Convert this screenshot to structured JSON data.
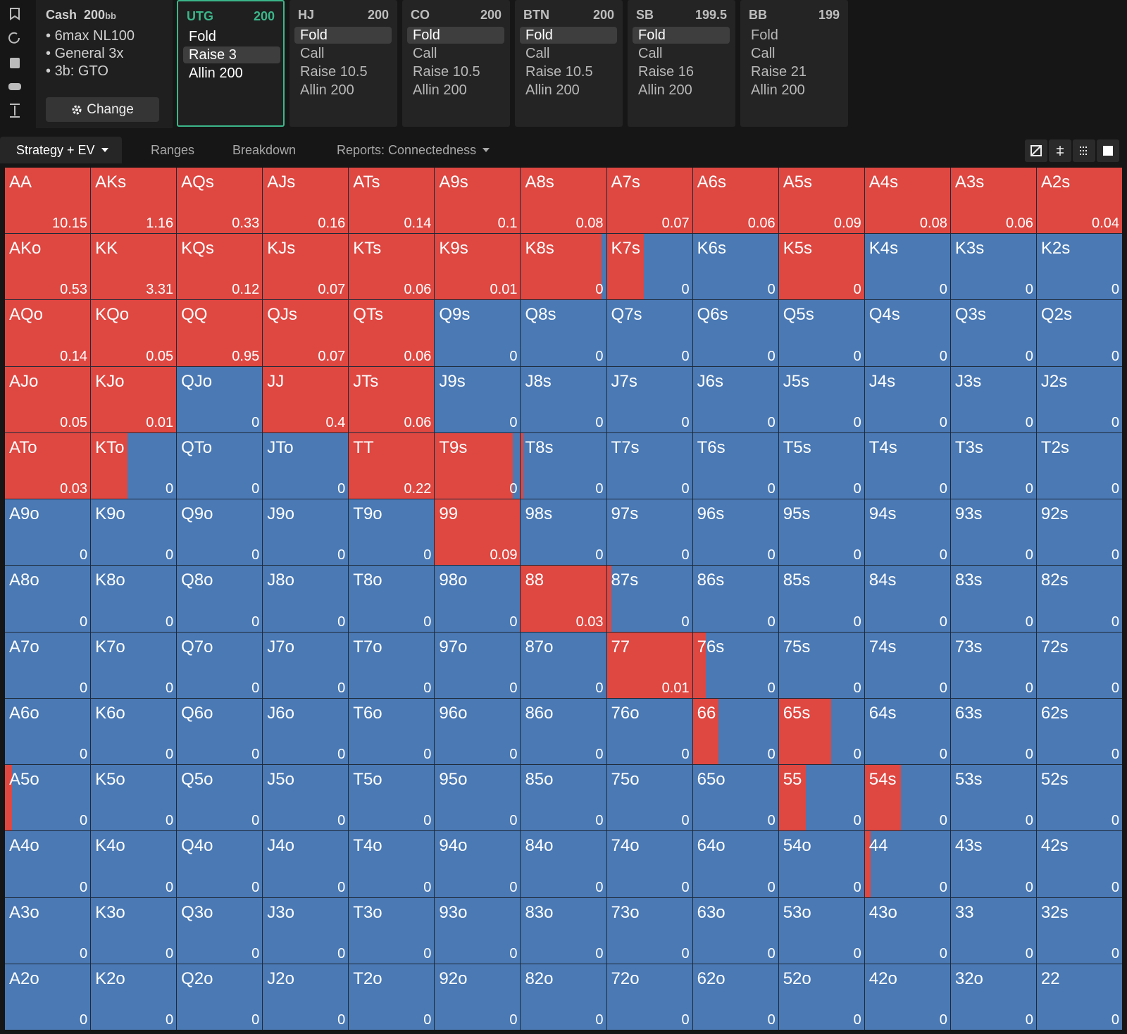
{
  "cash": {
    "title": "Cash",
    "stack": 200,
    "unit": "bb",
    "bullets": [
      "6max NL100",
      "General 3x",
      "3b: GTO"
    ],
    "button": "Change"
  },
  "positions": [
    {
      "name": "UTG",
      "stack": 200,
      "actions": [
        "Fold",
        "Raise 3",
        "Allin 200"
      ],
      "selected": 1,
      "active": true
    },
    {
      "name": "HJ",
      "stack": 200,
      "actions": [
        "Fold",
        "Call",
        "Raise 10.5",
        "Allin 200"
      ],
      "selected": 0
    },
    {
      "name": "CO",
      "stack": 200,
      "actions": [
        "Fold",
        "Call",
        "Raise 10.5",
        "Allin 200"
      ],
      "selected": 0
    },
    {
      "name": "BTN",
      "stack": 200,
      "actions": [
        "Fold",
        "Call",
        "Raise 10.5",
        "Allin 200"
      ],
      "selected": 0
    },
    {
      "name": "SB",
      "stack": 199.5,
      "actions": [
        "Fold",
        "Call",
        "Raise 16",
        "Allin 200"
      ],
      "selected": 0
    },
    {
      "name": "BB",
      "stack": 199,
      "actions": [
        "Fold",
        "Call",
        "Raise 21",
        "Allin 200"
      ]
    }
  ],
  "tabs": [
    {
      "label": "Strategy + EV",
      "dropdown": true
    },
    {
      "label": "Ranges"
    },
    {
      "label": "Breakdown"
    },
    {
      "label": "Reports: Connectedness",
      "dropdown": true
    }
  ],
  "active_tab": 0,
  "colors": {
    "raise": "#df4741",
    "fold": "#4a79b4"
  },
  "grid": {
    "rows": [
      [
        {
          "hand": "AA",
          "ev": 10.15,
          "raise": 100
        },
        {
          "hand": "AKs",
          "ev": 1.16,
          "raise": 100
        },
        {
          "hand": "AQs",
          "ev": 0.33,
          "raise": 100
        },
        {
          "hand": "AJs",
          "ev": 0.16,
          "raise": 100
        },
        {
          "hand": "ATs",
          "ev": 0.14,
          "raise": 100
        },
        {
          "hand": "A9s",
          "ev": 0.1,
          "raise": 100
        },
        {
          "hand": "A8s",
          "ev": 0.08,
          "raise": 100
        },
        {
          "hand": "A7s",
          "ev": 0.07,
          "raise": 100
        },
        {
          "hand": "A6s",
          "ev": 0.06,
          "raise": 100
        },
        {
          "hand": "A5s",
          "ev": 0.09,
          "raise": 100
        },
        {
          "hand": "A4s",
          "ev": 0.08,
          "raise": 100
        },
        {
          "hand": "A3s",
          "ev": 0.06,
          "raise": 100
        },
        {
          "hand": "A2s",
          "ev": 0.04,
          "raise": 100
        }
      ],
      [
        {
          "hand": "AKo",
          "ev": 0.53,
          "raise": 100
        },
        {
          "hand": "KK",
          "ev": 3.31,
          "raise": 100
        },
        {
          "hand": "KQs",
          "ev": 0.12,
          "raise": 100
        },
        {
          "hand": "KJs",
          "ev": 0.07,
          "raise": 100
        },
        {
          "hand": "KTs",
          "ev": 0.06,
          "raise": 100
        },
        {
          "hand": "K9s",
          "ev": 0.01,
          "raise": 100
        },
        {
          "hand": "K8s",
          "ev": 0,
          "raise": 95
        },
        {
          "hand": "K7s",
          "ev": 0,
          "raise": 43
        },
        {
          "hand": "K6s",
          "ev": 0,
          "raise": 0
        },
        {
          "hand": "K5s",
          "ev": 0,
          "raise": 100
        },
        {
          "hand": "K4s",
          "ev": 0,
          "raise": 0
        },
        {
          "hand": "K3s",
          "ev": 0,
          "raise": 0
        },
        {
          "hand": "K2s",
          "ev": 0,
          "raise": 0
        }
      ],
      [
        {
          "hand": "AQo",
          "ev": 0.14,
          "raise": 100
        },
        {
          "hand": "KQo",
          "ev": 0.05,
          "raise": 100
        },
        {
          "hand": "QQ",
          "ev": 0.95,
          "raise": 100
        },
        {
          "hand": "QJs",
          "ev": 0.07,
          "raise": 100
        },
        {
          "hand": "QTs",
          "ev": 0.06,
          "raise": 100
        },
        {
          "hand": "Q9s",
          "ev": 0,
          "raise": 0
        },
        {
          "hand": "Q8s",
          "ev": 0,
          "raise": 0
        },
        {
          "hand": "Q7s",
          "ev": 0,
          "raise": 0
        },
        {
          "hand": "Q6s",
          "ev": 0,
          "raise": 0
        },
        {
          "hand": "Q5s",
          "ev": 0,
          "raise": 0
        },
        {
          "hand": "Q4s",
          "ev": 0,
          "raise": 0
        },
        {
          "hand": "Q3s",
          "ev": 0,
          "raise": 0
        },
        {
          "hand": "Q2s",
          "ev": 0,
          "raise": 0
        }
      ],
      [
        {
          "hand": "AJo",
          "ev": 0.05,
          "raise": 100
        },
        {
          "hand": "KJo",
          "ev": 0.01,
          "raise": 100
        },
        {
          "hand": "QJo",
          "ev": 0,
          "raise": 0
        },
        {
          "hand": "JJ",
          "ev": 0.4,
          "raise": 100
        },
        {
          "hand": "JTs",
          "ev": 0.06,
          "raise": 100
        },
        {
          "hand": "J9s",
          "ev": 0,
          "raise": 0
        },
        {
          "hand": "J8s",
          "ev": 0,
          "raise": 0
        },
        {
          "hand": "J7s",
          "ev": 0,
          "raise": 0
        },
        {
          "hand": "J6s",
          "ev": 0,
          "raise": 0
        },
        {
          "hand": "J5s",
          "ev": 0,
          "raise": 0
        },
        {
          "hand": "J4s",
          "ev": 0,
          "raise": 0
        },
        {
          "hand": "J3s",
          "ev": 0,
          "raise": 0
        },
        {
          "hand": "J2s",
          "ev": 0,
          "raise": 0
        }
      ],
      [
        {
          "hand": "ATo",
          "ev": 0.03,
          "raise": 100
        },
        {
          "hand": "KTo",
          "ev": 0,
          "raise": 43
        },
        {
          "hand": "QTo",
          "ev": 0,
          "raise": 0
        },
        {
          "hand": "JTo",
          "ev": 0,
          "raise": 0
        },
        {
          "hand": "TT",
          "ev": 0.22,
          "raise": 100
        },
        {
          "hand": "T9s",
          "ev": 0,
          "raise": 91
        },
        {
          "hand": "T8s",
          "ev": 0,
          "raise": 3
        },
        {
          "hand": "T7s",
          "ev": 0,
          "raise": 0
        },
        {
          "hand": "T6s",
          "ev": 0,
          "raise": 0
        },
        {
          "hand": "T5s",
          "ev": 0,
          "raise": 0
        },
        {
          "hand": "T4s",
          "ev": 0,
          "raise": 0
        },
        {
          "hand": "T3s",
          "ev": 0,
          "raise": 0
        },
        {
          "hand": "T2s",
          "ev": 0,
          "raise": 0
        }
      ],
      [
        {
          "hand": "A9o",
          "ev": 0,
          "raise": 0
        },
        {
          "hand": "K9o",
          "ev": 0,
          "raise": 0
        },
        {
          "hand": "Q9o",
          "ev": 0,
          "raise": 0
        },
        {
          "hand": "J9o",
          "ev": 0,
          "raise": 0
        },
        {
          "hand": "T9o",
          "ev": 0,
          "raise": 0
        },
        {
          "hand": "99",
          "ev": 0.09,
          "raise": 100
        },
        {
          "hand": "98s",
          "ev": 0,
          "raise": 0
        },
        {
          "hand": "97s",
          "ev": 0,
          "raise": 0
        },
        {
          "hand": "96s",
          "ev": 0,
          "raise": 0
        },
        {
          "hand": "95s",
          "ev": 0,
          "raise": 0
        },
        {
          "hand": "94s",
          "ev": 0,
          "raise": 0
        },
        {
          "hand": "93s",
          "ev": 0,
          "raise": 0
        },
        {
          "hand": "92s",
          "ev": 0,
          "raise": 0
        }
      ],
      [
        {
          "hand": "A8o",
          "ev": 0,
          "raise": 0
        },
        {
          "hand": "K8o",
          "ev": 0,
          "raise": 0
        },
        {
          "hand": "Q8o",
          "ev": 0,
          "raise": 0
        },
        {
          "hand": "J8o",
          "ev": 0,
          "raise": 0
        },
        {
          "hand": "T8o",
          "ev": 0,
          "raise": 0
        },
        {
          "hand": "98o",
          "ev": 0,
          "raise": 0
        },
        {
          "hand": "88",
          "ev": 0.03,
          "raise": 100
        },
        {
          "hand": "87s",
          "ev": 0,
          "raise": 5
        },
        {
          "hand": "86s",
          "ev": 0,
          "raise": 0
        },
        {
          "hand": "85s",
          "ev": 0,
          "raise": 0
        },
        {
          "hand": "84s",
          "ev": 0,
          "raise": 0
        },
        {
          "hand": "83s",
          "ev": 0,
          "raise": 0
        },
        {
          "hand": "82s",
          "ev": 0,
          "raise": 0
        }
      ],
      [
        {
          "hand": "A7o",
          "ev": 0,
          "raise": 0
        },
        {
          "hand": "K7o",
          "ev": 0,
          "raise": 0
        },
        {
          "hand": "Q7o",
          "ev": 0,
          "raise": 0
        },
        {
          "hand": "J7o",
          "ev": 0,
          "raise": 0
        },
        {
          "hand": "T7o",
          "ev": 0,
          "raise": 0
        },
        {
          "hand": "97o",
          "ev": 0,
          "raise": 0
        },
        {
          "hand": "87o",
          "ev": 0,
          "raise": 0
        },
        {
          "hand": "77",
          "ev": 0.01,
          "raise": 100
        },
        {
          "hand": "76s",
          "ev": 0,
          "raise": 15
        },
        {
          "hand": "75s",
          "ev": 0,
          "raise": 0
        },
        {
          "hand": "74s",
          "ev": 0,
          "raise": 0
        },
        {
          "hand": "73s",
          "ev": 0,
          "raise": 0
        },
        {
          "hand": "72s",
          "ev": 0,
          "raise": 0
        }
      ],
      [
        {
          "hand": "A6o",
          "ev": 0,
          "raise": 0
        },
        {
          "hand": "K6o",
          "ev": 0,
          "raise": 0
        },
        {
          "hand": "Q6o",
          "ev": 0,
          "raise": 0
        },
        {
          "hand": "J6o",
          "ev": 0,
          "raise": 0
        },
        {
          "hand": "T6o",
          "ev": 0,
          "raise": 0
        },
        {
          "hand": "96o",
          "ev": 0,
          "raise": 0
        },
        {
          "hand": "86o",
          "ev": 0,
          "raise": 0
        },
        {
          "hand": "76o",
          "ev": 0,
          "raise": 0
        },
        {
          "hand": "66",
          "ev": 0,
          "raise": 30
        },
        {
          "hand": "65s",
          "ev": 0,
          "raise": 61
        },
        {
          "hand": "64s",
          "ev": 0,
          "raise": 0
        },
        {
          "hand": "63s",
          "ev": 0,
          "raise": 0
        },
        {
          "hand": "62s",
          "ev": 0,
          "raise": 0
        }
      ],
      [
        {
          "hand": "A5o",
          "ev": 0,
          "raise": 8
        },
        {
          "hand": "K5o",
          "ev": 0,
          "raise": 0
        },
        {
          "hand": "Q5o",
          "ev": 0,
          "raise": 0
        },
        {
          "hand": "J5o",
          "ev": 0,
          "raise": 0
        },
        {
          "hand": "T5o",
          "ev": 0,
          "raise": 0
        },
        {
          "hand": "95o",
          "ev": 0,
          "raise": 0
        },
        {
          "hand": "85o",
          "ev": 0,
          "raise": 0
        },
        {
          "hand": "75o",
          "ev": 0,
          "raise": 0
        },
        {
          "hand": "65o",
          "ev": 0,
          "raise": 0
        },
        {
          "hand": "55",
          "ev": 0,
          "raise": 32
        },
        {
          "hand": "54s",
          "ev": 0,
          "raise": 42
        },
        {
          "hand": "53s",
          "ev": 0,
          "raise": 0
        },
        {
          "hand": "52s",
          "ev": 0,
          "raise": 0
        }
      ],
      [
        {
          "hand": "A4o",
          "ev": 0,
          "raise": 0
        },
        {
          "hand": "K4o",
          "ev": 0,
          "raise": 0
        },
        {
          "hand": "Q4o",
          "ev": 0,
          "raise": 0
        },
        {
          "hand": "J4o",
          "ev": 0,
          "raise": 0
        },
        {
          "hand": "T4o",
          "ev": 0,
          "raise": 0
        },
        {
          "hand": "94o",
          "ev": 0,
          "raise": 0
        },
        {
          "hand": "84o",
          "ev": 0,
          "raise": 0
        },
        {
          "hand": "74o",
          "ev": 0,
          "raise": 0
        },
        {
          "hand": "64o",
          "ev": 0,
          "raise": 0
        },
        {
          "hand": "54o",
          "ev": 0,
          "raise": 0
        },
        {
          "hand": "44",
          "ev": 0,
          "raise": 7
        },
        {
          "hand": "43s",
          "ev": 0,
          "raise": 0
        },
        {
          "hand": "42s",
          "ev": 0,
          "raise": 0
        }
      ],
      [
        {
          "hand": "A3o",
          "ev": 0,
          "raise": 0
        },
        {
          "hand": "K3o",
          "ev": 0,
          "raise": 0
        },
        {
          "hand": "Q3o",
          "ev": 0,
          "raise": 0
        },
        {
          "hand": "J3o",
          "ev": 0,
          "raise": 0
        },
        {
          "hand": "T3o",
          "ev": 0,
          "raise": 0
        },
        {
          "hand": "93o",
          "ev": 0,
          "raise": 0
        },
        {
          "hand": "83o",
          "ev": 0,
          "raise": 0
        },
        {
          "hand": "73o",
          "ev": 0,
          "raise": 0
        },
        {
          "hand": "63o",
          "ev": 0,
          "raise": 0
        },
        {
          "hand": "53o",
          "ev": 0,
          "raise": 0
        },
        {
          "hand": "43o",
          "ev": 0,
          "raise": 0
        },
        {
          "hand": "33",
          "ev": 0,
          "raise": 0
        },
        {
          "hand": "32s",
          "ev": 0,
          "raise": 0
        }
      ],
      [
        {
          "hand": "A2o",
          "ev": 0,
          "raise": 0
        },
        {
          "hand": "K2o",
          "ev": 0,
          "raise": 0
        },
        {
          "hand": "Q2o",
          "ev": 0,
          "raise": 0
        },
        {
          "hand": "J2o",
          "ev": 0,
          "raise": 0
        },
        {
          "hand": "T2o",
          "ev": 0,
          "raise": 0
        },
        {
          "hand": "92o",
          "ev": 0,
          "raise": 0
        },
        {
          "hand": "82o",
          "ev": 0,
          "raise": 0
        },
        {
          "hand": "72o",
          "ev": 0,
          "raise": 0
        },
        {
          "hand": "62o",
          "ev": 0,
          "raise": 0
        },
        {
          "hand": "52o",
          "ev": 0,
          "raise": 0
        },
        {
          "hand": "42o",
          "ev": 0,
          "raise": 0
        },
        {
          "hand": "32o",
          "ev": 0,
          "raise": 0
        },
        {
          "hand": "22",
          "ev": 0,
          "raise": 0
        }
      ]
    ]
  }
}
